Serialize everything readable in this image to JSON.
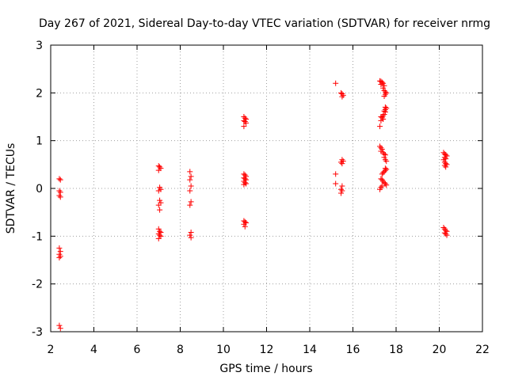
{
  "chart_data": {
    "type": "scatter",
    "title": "Day 267 of 2021, Sidereal Day-to-day VTEC variation (SDTVAR) for receiver nrmg",
    "xlabel": "GPS time / hours",
    "ylabel": "SDTVAR / TECUs",
    "xlim": [
      2,
      22
    ],
    "ylim": [
      -3,
      3
    ],
    "xticks": [
      2,
      4,
      6,
      8,
      10,
      12,
      14,
      16,
      18,
      20,
      22
    ],
    "yticks": [
      -3,
      -2,
      -1,
      0,
      1,
      2,
      3
    ],
    "grid": true,
    "marker": "plus",
    "color": "#ff0000",
    "series": [
      {
        "name": "SDTVAR",
        "points": [
          [
            2.4,
            0.2
          ],
          [
            2.45,
            0.18
          ],
          [
            2.4,
            -0.05
          ],
          [
            2.45,
            -0.08
          ],
          [
            2.4,
            -0.15
          ],
          [
            2.45,
            -0.18
          ],
          [
            2.4,
            -1.25
          ],
          [
            2.45,
            -1.32
          ],
          [
            2.4,
            -1.38
          ],
          [
            2.45,
            -1.42
          ],
          [
            2.4,
            -1.45
          ],
          [
            2.4,
            -2.87
          ],
          [
            2.45,
            -2.93
          ],
          [
            7.0,
            0.47
          ],
          [
            7.05,
            0.45
          ],
          [
            7.1,
            0.42
          ],
          [
            7.0,
            0.38
          ],
          [
            7.05,
            0.02
          ],
          [
            7.1,
            -0.02
          ],
          [
            7.0,
            -0.05
          ],
          [
            7.05,
            -0.25
          ],
          [
            7.1,
            -0.3
          ],
          [
            7.0,
            -0.35
          ],
          [
            7.05,
            -0.45
          ],
          [
            7.0,
            -0.85
          ],
          [
            7.05,
            -0.9
          ],
          [
            7.1,
            -0.92
          ],
          [
            7.0,
            -0.95
          ],
          [
            7.05,
            -0.98
          ],
          [
            7.1,
            -1.0
          ],
          [
            7.0,
            -1.05
          ],
          [
            8.45,
            0.35
          ],
          [
            8.5,
            0.25
          ],
          [
            8.45,
            0.18
          ],
          [
            8.5,
            0.05
          ],
          [
            8.45,
            -0.05
          ],
          [
            8.5,
            -0.28
          ],
          [
            8.45,
            -0.35
          ],
          [
            8.5,
            -0.92
          ],
          [
            8.45,
            -0.98
          ],
          [
            8.5,
            -1.03
          ],
          [
            10.95,
            1.5
          ],
          [
            11.0,
            1.47
          ],
          [
            11.05,
            1.45
          ],
          [
            10.95,
            1.42
          ],
          [
            11.0,
            1.4
          ],
          [
            11.05,
            1.37
          ],
          [
            10.95,
            1.3
          ],
          [
            10.95,
            0.3
          ],
          [
            11.0,
            0.28
          ],
          [
            11.05,
            0.25
          ],
          [
            10.95,
            0.22
          ],
          [
            11.0,
            0.2
          ],
          [
            11.05,
            0.18
          ],
          [
            10.95,
            0.15
          ],
          [
            11.0,
            0.12
          ],
          [
            11.05,
            0.1
          ],
          [
            10.95,
            0.08
          ],
          [
            10.95,
            -0.68
          ],
          [
            11.0,
            -0.7
          ],
          [
            11.05,
            -0.72
          ],
          [
            10.95,
            -0.75
          ],
          [
            11.0,
            -0.8
          ],
          [
            15.2,
            2.2
          ],
          [
            15.45,
            2.0
          ],
          [
            15.5,
            1.98
          ],
          [
            15.55,
            1.95
          ],
          [
            15.5,
            1.92
          ],
          [
            15.2,
            0.3
          ],
          [
            15.2,
            0.1
          ],
          [
            15.5,
            0.6
          ],
          [
            15.55,
            0.57
          ],
          [
            15.45,
            0.55
          ],
          [
            15.5,
            0.52
          ],
          [
            15.5,
            0.05
          ],
          [
            15.45,
            -0.02
          ],
          [
            15.5,
            -0.05
          ],
          [
            15.45,
            -0.1
          ],
          [
            17.25,
            2.25
          ],
          [
            17.3,
            2.24
          ],
          [
            17.35,
            2.22
          ],
          [
            17.4,
            2.2
          ],
          [
            17.3,
            2.18
          ],
          [
            17.45,
            2.15
          ],
          [
            17.4,
            2.1
          ],
          [
            17.45,
            2.05
          ],
          [
            17.5,
            2.02
          ],
          [
            17.55,
            2.0
          ],
          [
            17.5,
            1.97
          ],
          [
            17.45,
            1.93
          ],
          [
            17.5,
            1.7
          ],
          [
            17.55,
            1.68
          ],
          [
            17.5,
            1.65
          ],
          [
            17.45,
            1.62
          ],
          [
            17.5,
            1.6
          ],
          [
            17.45,
            1.55
          ],
          [
            17.4,
            1.52
          ],
          [
            17.3,
            1.5
          ],
          [
            17.35,
            1.48
          ],
          [
            17.4,
            1.45
          ],
          [
            17.3,
            1.42
          ],
          [
            17.25,
            1.3
          ],
          [
            17.25,
            0.88
          ],
          [
            17.3,
            0.85
          ],
          [
            17.35,
            0.82
          ],
          [
            17.3,
            0.78
          ],
          [
            17.4,
            0.75
          ],
          [
            17.45,
            0.72
          ],
          [
            17.5,
            0.7
          ],
          [
            17.45,
            0.65
          ],
          [
            17.5,
            0.6
          ],
          [
            17.55,
            0.57
          ],
          [
            17.5,
            0.42
          ],
          [
            17.55,
            0.4
          ],
          [
            17.5,
            0.38
          ],
          [
            17.45,
            0.35
          ],
          [
            17.4,
            0.33
          ],
          [
            17.35,
            0.3
          ],
          [
            17.3,
            0.2
          ],
          [
            17.35,
            0.18
          ],
          [
            17.4,
            0.15
          ],
          [
            17.45,
            0.12
          ],
          [
            17.5,
            0.1
          ],
          [
            17.55,
            0.07
          ],
          [
            17.35,
            0.05
          ],
          [
            17.3,
            0.02
          ],
          [
            17.25,
            -0.02
          ],
          [
            20.2,
            0.75
          ],
          [
            20.25,
            0.72
          ],
          [
            20.3,
            0.7
          ],
          [
            20.35,
            0.68
          ],
          [
            20.25,
            0.65
          ],
          [
            20.3,
            0.62
          ],
          [
            20.2,
            0.6
          ],
          [
            20.25,
            0.55
          ],
          [
            20.3,
            0.52
          ],
          [
            20.35,
            0.5
          ],
          [
            20.25,
            0.48
          ],
          [
            20.3,
            0.45
          ],
          [
            20.2,
            -0.82
          ],
          [
            20.25,
            -0.85
          ],
          [
            20.3,
            -0.88
          ],
          [
            20.35,
            -0.9
          ],
          [
            20.25,
            -0.93
          ],
          [
            20.3,
            -0.95
          ],
          [
            20.35,
            -0.98
          ]
        ]
      }
    ]
  }
}
